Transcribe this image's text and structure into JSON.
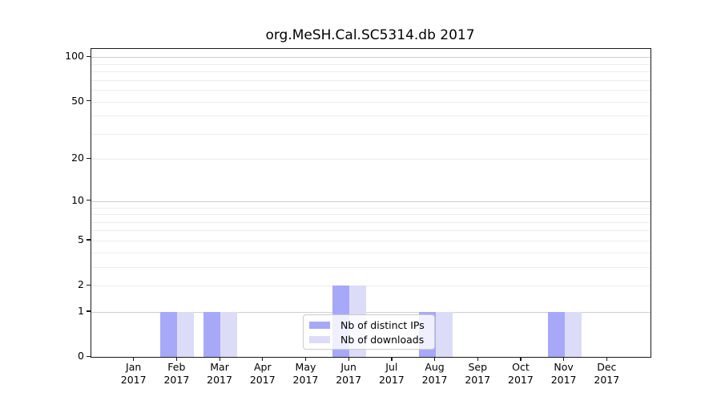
{
  "figure": {
    "title": "org.MeSH.Cal.SC5314.db 2017"
  },
  "chart_data": {
    "type": "bar",
    "title": "org.MeSH.Cal.SC5314.db 2017",
    "categories": [
      "Jan",
      "Feb",
      "Mar",
      "Apr",
      "May",
      "Jun",
      "Jul",
      "Aug",
      "Sep",
      "Oct",
      "Nov",
      "Dec"
    ],
    "category_sublabel": "2017",
    "series": [
      {
        "name": "Nb of distinct IPs",
        "color": "#a8a8f8",
        "values": [
          0,
          1,
          1,
          0,
          0,
          2,
          0,
          1,
          0,
          0,
          1,
          0
        ]
      },
      {
        "name": "Nb of downloads",
        "color": "#dcdcf8",
        "values": [
          0,
          1,
          1,
          0,
          0,
          2,
          0,
          1,
          0,
          0,
          1,
          0
        ]
      }
    ],
    "xlabel": "",
    "ylabel": "",
    "yscale": "log1p",
    "ylim": [
      0,
      114
    ],
    "yticks": [
      0,
      1,
      2,
      5,
      10,
      20,
      50,
      100
    ],
    "major_gridlines": [
      1,
      10,
      100
    ],
    "minor_gridlines": [
      2,
      3,
      4,
      5,
      6,
      7,
      8,
      9,
      20,
      30,
      40,
      50,
      60,
      70,
      80,
      90
    ],
    "grid": "horizontal",
    "legend_position": "lower-center-inside"
  },
  "colors": {
    "distinct_ips": "#a8a8f8",
    "downloads": "#dcdcf8",
    "grid_major": "#cfcfcf",
    "grid_minor": "#ececec",
    "frame": "#1a1a1a",
    "text": "#000000"
  }
}
